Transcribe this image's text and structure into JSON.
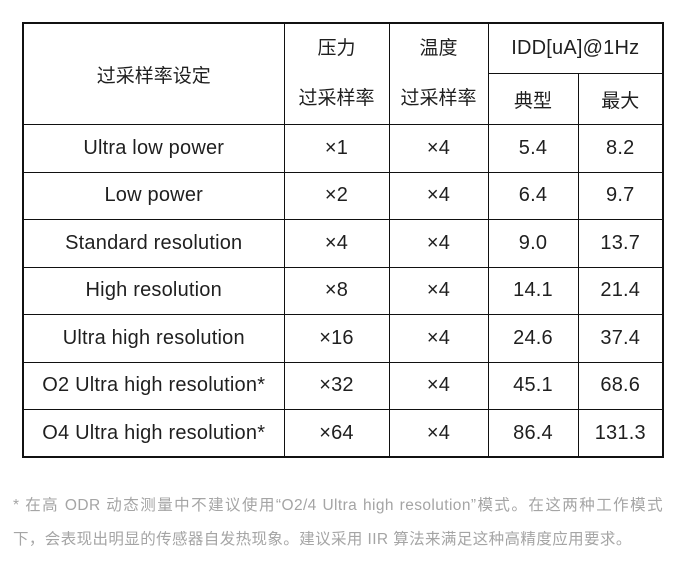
{
  "table": {
    "header": {
      "setting": "过采样率设定",
      "pressure_line1": "压力",
      "pressure_line2": "过采样率",
      "temperature_line1": "温度",
      "temperature_line2": "过采样率",
      "idd_group": "IDD[uA]@1Hz",
      "typical": "典型",
      "max": "最大"
    },
    "rows": [
      {
        "setting": "Ultra low power",
        "pressure_osr": "×1",
        "temp_osr": "×4",
        "typical": "5.4",
        "max": "8.2"
      },
      {
        "setting": "Low power",
        "pressure_osr": "×2",
        "temp_osr": "×4",
        "typical": "6.4",
        "max": "9.7"
      },
      {
        "setting": "Standard resolution",
        "pressure_osr": "×4",
        "temp_osr": "×4",
        "typical": "9.0",
        "max": "13.7"
      },
      {
        "setting": "High resolution",
        "pressure_osr": "×8",
        "temp_osr": "×4",
        "typical": "14.1",
        "max": "21.4"
      },
      {
        "setting": "Ultra high resolution",
        "pressure_osr": "×16",
        "temp_osr": "×4",
        "typical": "24.6",
        "max": "37.4"
      },
      {
        "setting": "O2 Ultra high resolution*",
        "pressure_osr": "×32",
        "temp_osr": "×4",
        "typical": "45.1",
        "max": "68.6"
      },
      {
        "setting": "O4 Ultra high resolution*",
        "pressure_osr": "×64",
        "temp_osr": "×4",
        "typical": "86.4",
        "max": "131.3"
      }
    ]
  },
  "footnote": {
    "text": "* 在高 ODR 动态测量中不建议使用“O2/4 Ultra high resolution”模式。在这两种工作模式下，会表现出明显的传感器自发热现象。建议采用 IIR 算法来满足这种高精度应用要求。"
  },
  "colors": {
    "border": "#111111",
    "text": "#1f1f1f",
    "footnote_text": "#a5a5a5",
    "background": "#ffffff"
  }
}
